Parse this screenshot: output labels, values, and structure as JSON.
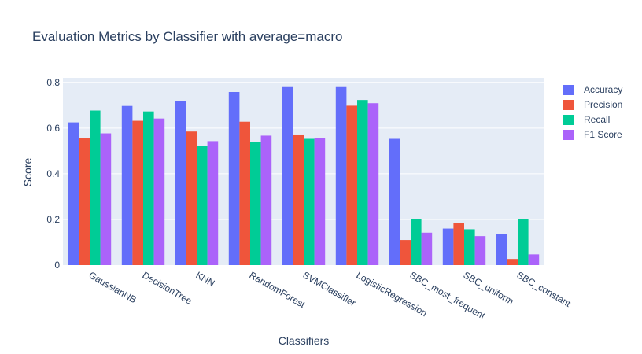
{
  "chart_data": {
    "type": "bar",
    "title": "Evaluation Metrics by Classifier with average=macro",
    "xlabel": "Classifiers",
    "ylabel": "Score",
    "ylim": [
      0,
      0.82
    ],
    "yticks": [
      "0",
      "0.2",
      "0.4",
      "0.6",
      "0.8"
    ],
    "ytick_values": [
      0,
      0.2,
      0.4,
      0.6,
      0.8
    ],
    "grid": true,
    "legend_position": "top-right",
    "categories": [
      "GaussianNB",
      "DecisionTree",
      "KNN",
      "RandomForest",
      "SVMClassifier",
      "LogisticRegression",
      "SBC_most_frequent",
      "SBC_uniform",
      "SBC_constant"
    ],
    "series": [
      {
        "name": "Accuracy",
        "color": "#636efa",
        "values": [
          0.625,
          0.697,
          0.72,
          0.758,
          0.783,
          0.783,
          0.553,
          0.16,
          0.137
        ]
      },
      {
        "name": "Precision",
        "color": "#ef553b",
        "values": [
          0.557,
          0.632,
          0.585,
          0.628,
          0.572,
          0.698,
          0.11,
          0.183,
          0.027
        ]
      },
      {
        "name": "Recall",
        "color": "#00cc96",
        "values": [
          0.677,
          0.673,
          0.522,
          0.54,
          0.553,
          0.723,
          0.2,
          0.157,
          0.2
        ]
      },
      {
        "name": "F1 Score",
        "color": "#ab63fa",
        "values": [
          0.577,
          0.642,
          0.543,
          0.567,
          0.558,
          0.709,
          0.142,
          0.127,
          0.047
        ]
      }
    ]
  }
}
